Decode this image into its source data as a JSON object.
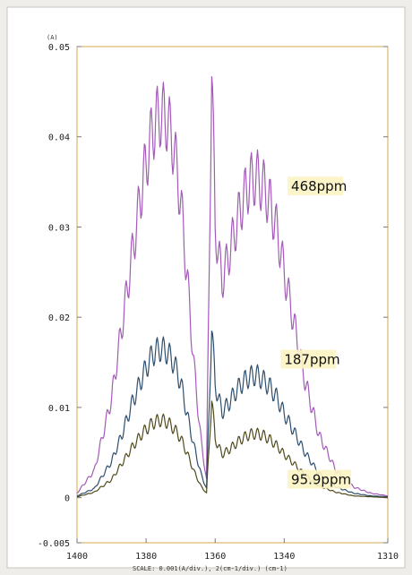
{
  "chart_data": {
    "type": "line",
    "title": "",
    "y_unit_label": "(A)",
    "scale_label": "SCALE: 0.001(A/div.), 2(cm-1/div.) (cm-1)",
    "xlim": [
      1400,
      1310
    ],
    "ylim": [
      -0.005,
      0.05
    ],
    "grid": false,
    "x_ticks": [
      1400,
      1380,
      1360,
      1340,
      1310
    ],
    "x_tick_labels": [
      "1400",
      "1380",
      "1360",
      "1340",
      "1310"
    ],
    "y_ticks": [
      0.05,
      0.04,
      0.03,
      0.02,
      0.01,
      0,
      -0.005
    ],
    "y_tick_labels": [
      "0.05",
      "0.04",
      "0.03",
      "0.02",
      "0.01",
      "0",
      "-0.005"
    ],
    "series": [
      {
        "label": "468ppm",
        "color": "#a35bb8",
        "x": [
          1400,
          1395,
          1390,
          1387,
          1384,
          1381,
          1378,
          1376,
          1374,
          1372,
          1370,
          1368,
          1366,
          1364,
          1362.5,
          1361,
          1360,
          1358,
          1356,
          1354,
          1352,
          1350,
          1348,
          1346,
          1344,
          1342,
          1340,
          1337,
          1334,
          1330,
          1325,
          1320,
          1315,
          1310
        ],
        "y": [
          0.0005,
          0.003,
          0.011,
          0.019,
          0.027,
          0.035,
          0.041,
          0.0425,
          0.042,
          0.039,
          0.033,
          0.024,
          0.014,
          0.006,
          0.002,
          0.048,
          0.03,
          0.024,
          0.027,
          0.03,
          0.033,
          0.035,
          0.0355,
          0.0345,
          0.0325,
          0.0295,
          0.025,
          0.019,
          0.013,
          0.007,
          0.003,
          0.0012,
          0.0005,
          0.0002
        ]
      },
      {
        "label": "187ppm",
        "color": "#2e4e6e",
        "x": [
          1400,
          1395,
          1390,
          1387,
          1384,
          1381,
          1378,
          1376,
          1374,
          1372,
          1370,
          1368,
          1366,
          1364,
          1362.5,
          1361,
          1360,
          1358,
          1356,
          1354,
          1352,
          1350,
          1348,
          1346,
          1344,
          1342,
          1340,
          1337,
          1334,
          1330,
          1325,
          1320,
          1315,
          1310
        ],
        "y": [
          0.0002,
          0.001,
          0.004,
          0.007,
          0.0105,
          0.0135,
          0.016,
          0.0165,
          0.0162,
          0.015,
          0.0128,
          0.009,
          0.0055,
          0.0025,
          0.001,
          0.019,
          0.0125,
          0.0095,
          0.0105,
          0.0118,
          0.0128,
          0.0134,
          0.0136,
          0.013,
          0.0122,
          0.011,
          0.0093,
          0.0072,
          0.005,
          0.0027,
          0.0012,
          0.0005,
          0.0002,
          0.0001
        ]
      },
      {
        "label": "95.9ppm",
        "color": "#4f4a1c",
        "x": [
          1400,
          1395,
          1390,
          1387,
          1384,
          1381,
          1378,
          1376,
          1374,
          1372,
          1370,
          1368,
          1366,
          1364,
          1362.5,
          1361,
          1360,
          1358,
          1356,
          1354,
          1352,
          1350,
          1348,
          1346,
          1344,
          1342,
          1340,
          1337,
          1334,
          1330,
          1325,
          1320,
          1315,
          1310
        ],
        "y": [
          0.0001,
          0.0006,
          0.002,
          0.0038,
          0.0056,
          0.0072,
          0.0083,
          0.0086,
          0.0084,
          0.0077,
          0.0066,
          0.0048,
          0.0028,
          0.0012,
          0.0005,
          0.011,
          0.0065,
          0.0048,
          0.0053,
          0.006,
          0.0066,
          0.007,
          0.0071,
          0.0069,
          0.0064,
          0.0057,
          0.0048,
          0.0037,
          0.0025,
          0.0013,
          0.0006,
          0.0002,
          0.0001,
          0
        ]
      }
    ],
    "annotations": [
      {
        "text": "468ppm",
        "x": 1338,
        "y": 0.034
      },
      {
        "text": "187ppm",
        "x": 1340,
        "y": 0.0148
      },
      {
        "text": "95.9ppm",
        "x": 1338,
        "y": 0.0015
      }
    ]
  }
}
